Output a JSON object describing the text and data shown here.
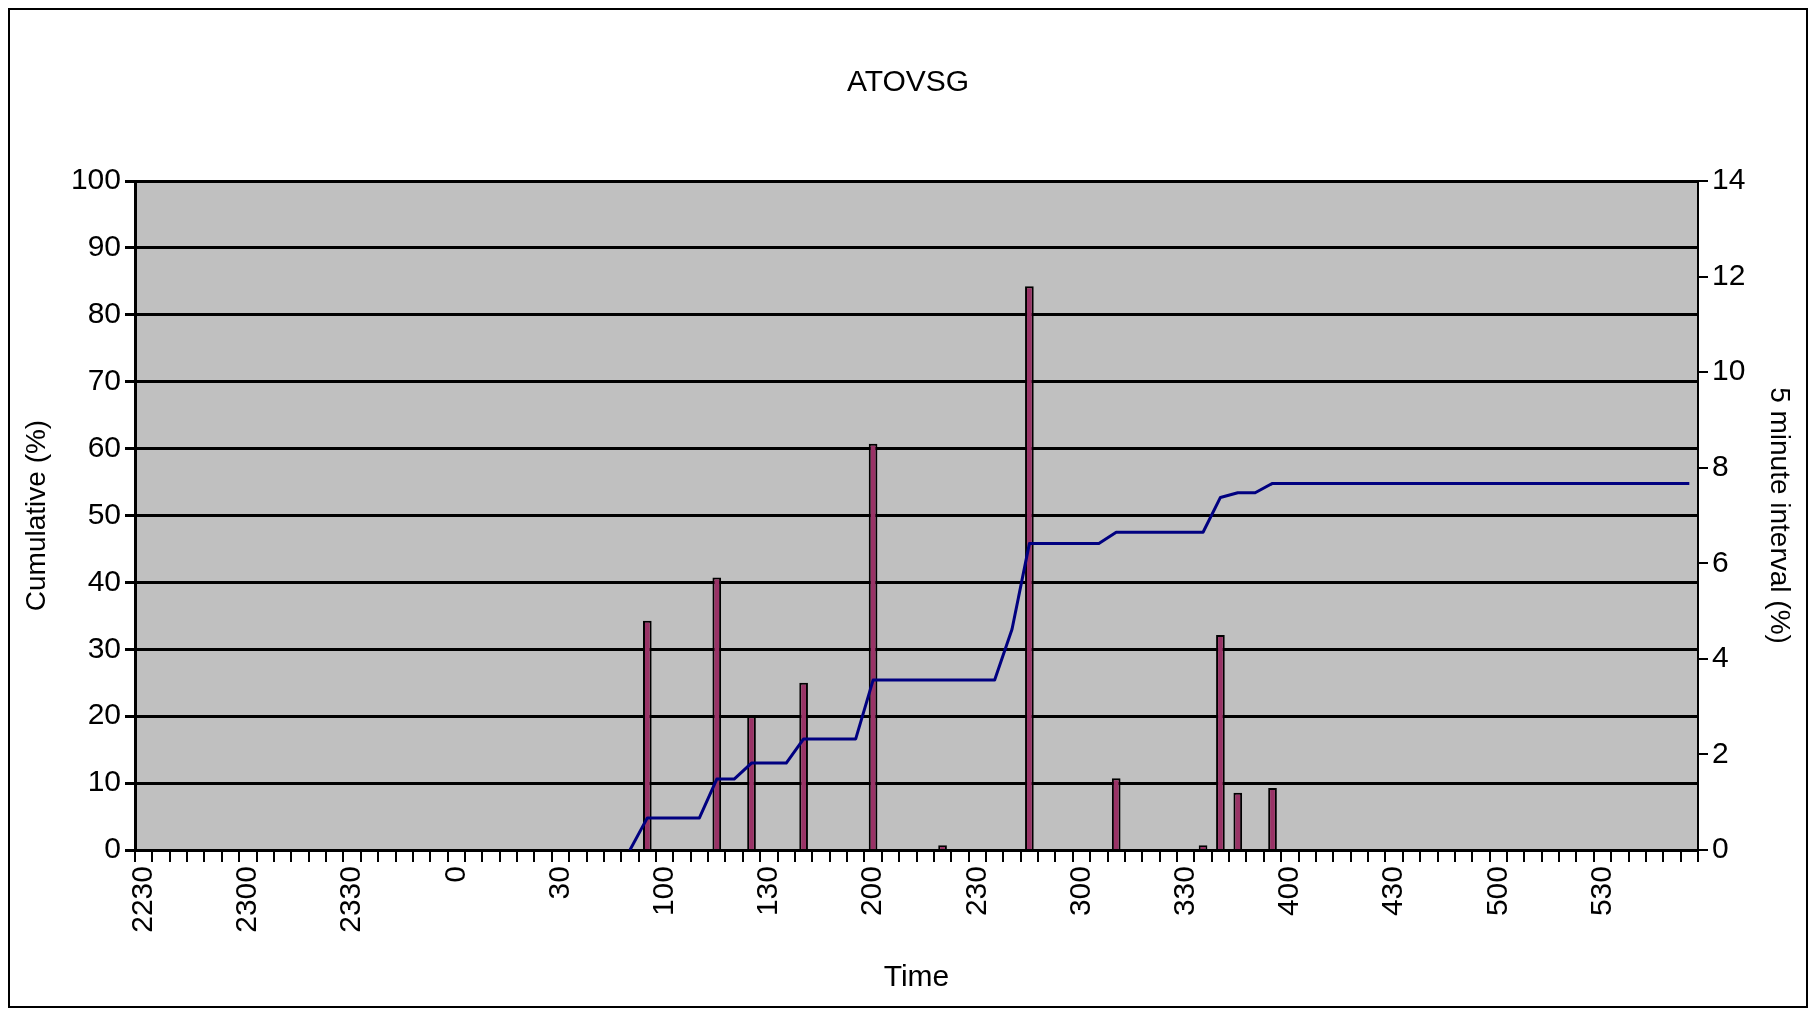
{
  "chart_data": {
    "type": "bar",
    "title": "ATOVSG",
    "xlabel": "Time",
    "ylabel": "Cumulative (%)",
    "y2label": "5 minute interval (%)",
    "categories": [
      "2230",
      null,
      null,
      null,
      null,
      null,
      "2300",
      null,
      null,
      null,
      null,
      null,
      "2330",
      null,
      null,
      null,
      null,
      null,
      "0",
      null,
      null,
      null,
      null,
      null,
      "30",
      null,
      null,
      null,
      null,
      null,
      "100",
      null,
      null,
      null,
      null,
      null,
      "130",
      null,
      null,
      null,
      null,
      null,
      "200",
      null,
      null,
      null,
      null,
      null,
      "230",
      null,
      null,
      null,
      null,
      null,
      "300",
      null,
      null,
      null,
      null,
      null,
      "330",
      null,
      null,
      null,
      null,
      null,
      "400",
      null,
      null,
      null,
      null,
      null,
      "430",
      null,
      null,
      null,
      null,
      null,
      "500",
      null,
      null,
      null,
      null,
      null,
      "530",
      null,
      null,
      null,
      null,
      null
    ],
    "series": [
      {
        "type": "line",
        "color": "#000080",
        "values": [
          null,
          null,
          null,
          null,
          null,
          null,
          null,
          null,
          null,
          null,
          null,
          null,
          null,
          null,
          null,
          null,
          null,
          null,
          null,
          null,
          null,
          null,
          null,
          null,
          null,
          null,
          null,
          null,
          0,
          4.8,
          4.8,
          4.8,
          4.8,
          10.6,
          10.6,
          13.0,
          13.0,
          13.0,
          16.6,
          16.6,
          16.6,
          16.6,
          25.4,
          25.4,
          25.4,
          25.4,
          25.4,
          25.4,
          25.4,
          25.4,
          33.0,
          45.8,
          45.8,
          45.8,
          45.8,
          45.8,
          47.5,
          47.5,
          47.5,
          47.5,
          47.5,
          47.5,
          52.7,
          53.4,
          53.4,
          54.8,
          54.8,
          54.8,
          54.8,
          54.8,
          54.8,
          54.8,
          54.8,
          54.8,
          54.8,
          54.8,
          54.8,
          54.8,
          54.8,
          54.8,
          54.8,
          54.8,
          54.8,
          54.8,
          54.8,
          54.8,
          54.8,
          54.8,
          54.8,
          54.8
        ]
      },
      {
        "axis": "y2",
        "color": "#993366",
        "values": [
          null,
          null,
          null,
          null,
          null,
          null,
          null,
          null,
          null,
          null,
          null,
          null,
          null,
          null,
          null,
          null,
          null,
          null,
          null,
          null,
          null,
          null,
          null,
          null,
          null,
          null,
          null,
          null,
          null,
          4.8,
          null,
          null,
          null,
          5.7,
          null,
          2.8,
          null,
          null,
          3.5,
          null,
          null,
          null,
          8.5,
          null,
          null,
          null,
          0.1,
          null,
          null,
          null,
          null,
          11.8,
          null,
          null,
          null,
          null,
          1.5,
          null,
          null,
          null,
          null,
          0.1,
          4.5,
          1.2,
          null,
          1.3,
          null,
          null,
          null,
          null,
          null,
          null,
          null,
          null,
          null,
          null,
          null,
          null,
          null,
          null,
          null,
          null,
          null,
          null,
          null,
          null,
          null,
          null,
          null,
          null
        ]
      }
    ],
    "ylim": [
      0,
      100
    ],
    "yticks": [
      0,
      10,
      20,
      30,
      40,
      50,
      60,
      70,
      80,
      90,
      100
    ],
    "y2lim": [
      0,
      14
    ],
    "y2ticks": [
      0,
      2,
      4,
      6,
      8,
      10,
      12,
      14
    ],
    "grid": "y"
  }
}
